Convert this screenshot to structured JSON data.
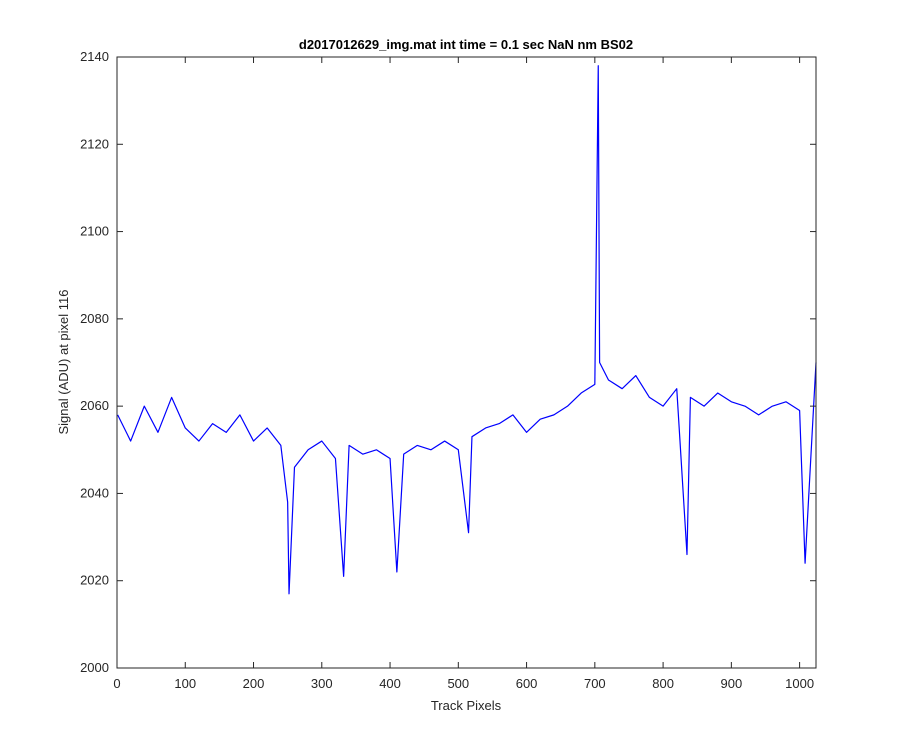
{
  "chart_data": {
    "type": "line",
    "title": "d2017012629_img.mat int time = 0.1 sec  NaN nm BS02",
    "xlabel": "Track Pixels",
    "ylabel": "Signal (ADU) at pixel 116",
    "xlim": [
      0,
      1024
    ],
    "ylim": [
      2000,
      2140
    ],
    "xticks": [
      0,
      100,
      200,
      300,
      400,
      500,
      600,
      700,
      800,
      900,
      1000
    ],
    "yticks": [
      2000,
      2020,
      2040,
      2060,
      2080,
      2100,
      2120,
      2140
    ],
    "grid": false,
    "line_color": "#0000ff",
    "series": [
      {
        "x": [
          1,
          20,
          40,
          60,
          80,
          100,
          120,
          140,
          160,
          180,
          200,
          220,
          240,
          250,
          252,
          260,
          280,
          300,
          320,
          332,
          340,
          360,
          380,
          400,
          410,
          420,
          440,
          460,
          480,
          500,
          515,
          520,
          540,
          560,
          580,
          600,
          620,
          640,
          660,
          680,
          700,
          705,
          707,
          720,
          740,
          760,
          780,
          800,
          820,
          835,
          840,
          860,
          880,
          900,
          920,
          940,
          960,
          980,
          1000,
          1008,
          1024
        ],
        "y": [
          2058,
          2052,
          2060,
          2054,
          2062,
          2055,
          2052,
          2056,
          2054,
          2058,
          2052,
          2055,
          2051,
          2038,
          2017,
          2046,
          2050,
          2052,
          2048,
          2021,
          2051,
          2049,
          2050,
          2048,
          2022,
          2049,
          2051,
          2050,
          2052,
          2050,
          2031,
          2053,
          2055,
          2056,
          2058,
          2054,
          2057,
          2058,
          2060,
          2063,
          2065,
          2138,
          2070,
          2066,
          2064,
          2067,
          2062,
          2060,
          2064,
          2026,
          2062,
          2060,
          2063,
          2061,
          2060,
          2058,
          2060,
          2061,
          2059,
          2024,
          2070
        ]
      }
    ]
  }
}
